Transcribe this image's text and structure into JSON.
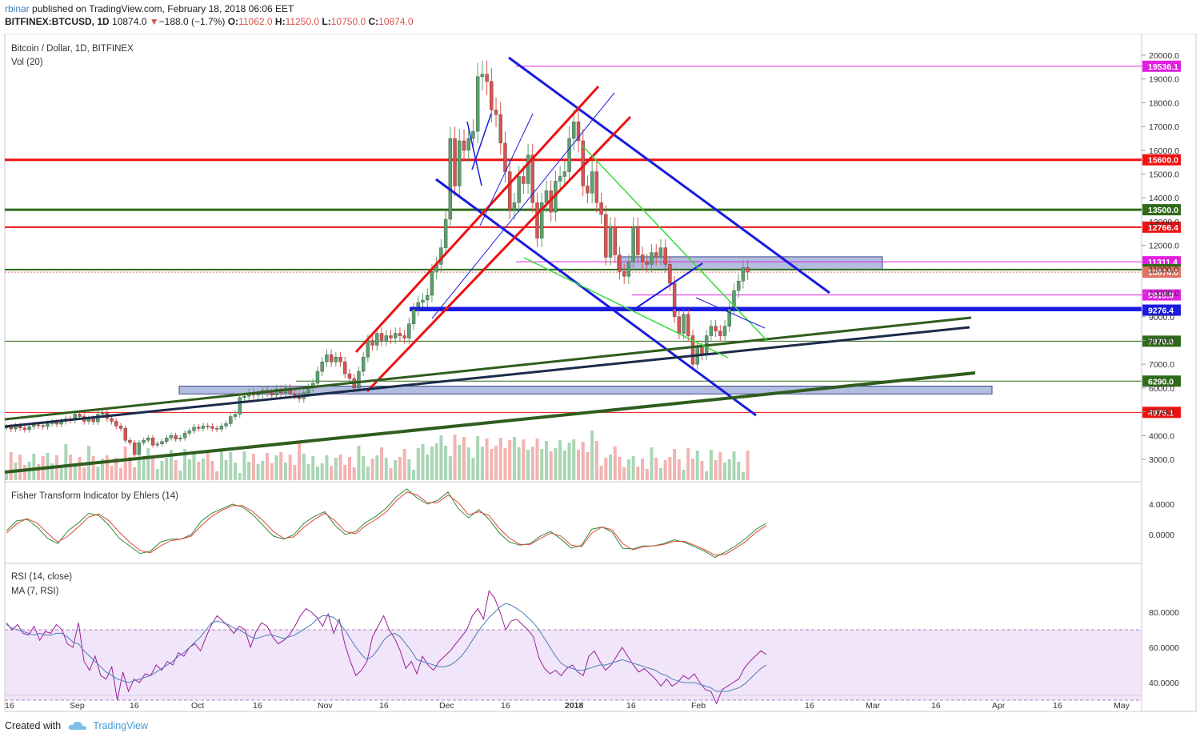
{
  "header": {
    "publisher": "rbinar",
    "published_text": "published on TradingView.com, February 18, 2018 06:06 EET",
    "symbol": "BITFINEX:BTCUSD, 1D",
    "last": "10874.0",
    "change": "−188.0 (−1.7%)",
    "o_label": "O:",
    "o": "11062.0",
    "h_label": "H:",
    "h": "11250.0",
    "l_label": "L:",
    "l": "10750.0",
    "c_label": "C:",
    "c": "10874.0"
  },
  "panes": {
    "main_title": "Bitcoin / Dollar, 1D, BITFINEX",
    "volume_title": "Vol (20)",
    "fisher_title": "Fisher Transform Indicator by Ehlers (14)",
    "rsi_title": "RSI (14, close)",
    "rsi_ma_title": "MA (7, RSI)"
  },
  "footer": {
    "created_with": "Created with",
    "brand": "TradingView"
  },
  "colors": {
    "up": "#5aa16d",
    "down": "#d9534f",
    "red_line": "#ee1111",
    "green_line": "#3a6b1c",
    "blue_line": "#1a1ae0",
    "navy_line": "#1b2b4a",
    "magenta": "#e020e0",
    "zone": "#7486c4"
  },
  "chart_data": [
    {
      "type": "candlestick",
      "title": "Bitcoin / Dollar, 1D, BITFINEX",
      "ylim": [
        2200,
        20800
      ],
      "y_ticks": [
        "3000.0",
        "4000.0",
        "5000.0",
        "6000.0",
        "7000.0",
        "8000.0",
        "9000.0",
        "10000.0",
        "11000.0",
        "12000.0",
        "13000.0",
        "14000.0",
        "15000.0",
        "16000.0",
        "17000.0",
        "18000.0",
        "19000.0",
        "20000.0"
      ],
      "x_ticks": [
        "16",
        "Sep",
        "16",
        "Oct",
        "16",
        "Nov",
        "16",
        "Dec",
        "16",
        "2018",
        "16",
        "Feb",
        "16",
        "Mar",
        "16",
        "Apr",
        "16",
        "May",
        "16"
      ],
      "closes": [
        4350,
        4280,
        4400,
        4320,
        4250,
        4380,
        4450,
        4420,
        4380,
        4500,
        4550,
        4480,
        4600,
        4700,
        4650,
        4900,
        4800,
        4600,
        4700,
        4580,
        4900,
        4950,
        4720,
        4600,
        4400,
        4300,
        3800,
        3700,
        3200,
        3700,
        3800,
        3900,
        3600,
        3650,
        3750,
        3900,
        4000,
        3850,
        3900,
        4100,
        4200,
        4350,
        4300,
        4400,
        4380,
        4300,
        4270,
        4400,
        4500,
        4800,
        4900,
        5600,
        5650,
        5800,
        5700,
        5750,
        5900,
        5800,
        5700,
        5950,
        5800,
        6000,
        5750,
        5700,
        5550,
        5800,
        6000,
        6200,
        6700,
        7100,
        7400,
        7100,
        7300,
        7100,
        6600,
        6400,
        6000,
        6700,
        7300,
        8000,
        7800,
        8300,
        8000,
        8200,
        8100,
        8300,
        8200,
        8100,
        8700,
        9300,
        9600,
        9700,
        9900,
        10900,
        11200,
        11900,
        13100,
        16500,
        14500,
        16400,
        16000,
        16500,
        16800,
        19100,
        19200,
        18900,
        17700,
        17500,
        16300,
        15100,
        13500,
        13800,
        14900,
        14600,
        15800,
        13800,
        12300,
        13800,
        14300,
        13400,
        14700,
        14900,
        15100,
        16500,
        17200,
        16400,
        14500,
        14200,
        15100,
        13800,
        13300,
        11500,
        12800,
        11600,
        10900,
        10700,
        11300,
        12800,
        11600,
        11300,
        11200,
        11700,
        11500,
        11900,
        11200,
        10400,
        9000,
        8300,
        9100,
        8200,
        7000,
        7700,
        7400,
        8200,
        8600,
        8400,
        8200,
        8600,
        9400,
        10100,
        10500,
        11062,
        10874
      ],
      "opens_follow_previous_close": true,
      "horizontal_levels": [
        {
          "value": 19536.1,
          "color": "#e020e0",
          "label": "19536.1"
        },
        {
          "value": 15600.0,
          "color": "#ee1111",
          "label": "15600.0"
        },
        {
          "value": 13500.0,
          "color": "#2f6a1a",
          "label": "13500.0"
        },
        {
          "value": 12766.4,
          "color": "#ee1111",
          "label": "12766.4"
        },
        {
          "value": 11311.4,
          "color": "#e020e0",
          "label": "11311.4"
        },
        {
          "value": 10982.1,
          "color": "#2f6a1a",
          "label": "10982.1"
        },
        {
          "value": 10874.0,
          "color": "#e07060",
          "label": "10874.0"
        },
        {
          "value": 9915.0,
          "color": "#e020e0",
          "label": "9915.0"
        },
        {
          "value": 9276.4,
          "color": "#1a1ae0",
          "label": "9276.4"
        },
        {
          "value": 7970.0,
          "color": "#2f6a1a",
          "label": "7970.0"
        },
        {
          "value": 6290.0,
          "color": "#2f6a1a",
          "label": "6290.0"
        },
        {
          "value": 4975.1,
          "color": "#ee1111",
          "label": "4975.1"
        }
      ],
      "zones": [
        {
          "y1": 10982,
          "y2": 11520
        },
        {
          "y1": 5750,
          "y2": 6080
        }
      ]
    },
    {
      "type": "line",
      "title": "Fisher Transform Indicator by Ehlers (14)",
      "y_ticks": [
        "4.0000",
        "0.0000"
      ],
      "series": [
        {
          "color": "#2e8b3a",
          "values": [
            0.5,
            1.8,
            2.0,
            1.0,
            -0.5,
            -1.2,
            0.5,
            1.5,
            2.8,
            2.5,
            1.2,
            -0.5,
            -1.5,
            -2.5,
            -2.2,
            -1.0,
            -0.6,
            -0.6,
            0.0,
            1.8,
            2.8,
            3.4,
            4.0,
            3.6,
            2.6,
            1.2,
            -0.2,
            -0.6,
            0.0,
            1.5,
            2.4,
            3.0,
            1.2,
            0.0,
            0.4,
            1.6,
            2.4,
            3.5,
            5.0,
            6.0,
            4.8,
            4.0,
            4.5,
            5.6,
            3.4,
            2.2,
            3.3,
            2.0,
            0.2,
            -1.0,
            -1.4,
            -1.2,
            -0.2,
            0.4,
            -0.6,
            -1.8,
            -1.4,
            0.7,
            1.0,
            0.3,
            -1.8,
            -1.9,
            -1.5,
            -1.5,
            -1.2,
            -0.7,
            -1.0,
            -1.6,
            -2.2,
            -3.0,
            -2.3,
            -1.5,
            -0.5,
            0.7,
            1.5
          ]
        },
        {
          "color": "#e0453a",
          "values": [
            0.2,
            1.4,
            2.1,
            1.5,
            0.2,
            -1.0,
            -0.2,
            1.0,
            2.3,
            2.7,
            1.8,
            0.3,
            -1.0,
            -2.1,
            -2.4,
            -1.5,
            -0.8,
            -0.6,
            -0.2,
            1.2,
            2.4,
            3.2,
            3.8,
            3.8,
            3.0,
            1.8,
            0.4,
            -0.5,
            -0.3,
            1.0,
            2.0,
            2.8,
            1.8,
            0.4,
            0.1,
            1.2,
            2.0,
            3.0,
            4.5,
            5.6,
            5.2,
            4.2,
            4.2,
            5.2,
            4.2,
            2.6,
            3.0,
            2.5,
            0.8,
            -0.5,
            -1.3,
            -1.3,
            -0.5,
            0.2,
            -0.2,
            -1.4,
            -1.6,
            0.2,
            1.0,
            0.6,
            -1.2,
            -2.0,
            -1.6,
            -1.5,
            -1.3,
            -0.9,
            -0.9,
            -1.4,
            -2.0,
            -2.7,
            -2.6,
            -1.8,
            -0.9,
            0.3,
            1.2
          ]
        }
      ]
    },
    {
      "type": "line",
      "title": "RSI (14, close)",
      "y_ticks": [
        "80.0000",
        "60.0000",
        "40.0000"
      ],
      "band": [
        30,
        70
      ],
      "series": [
        {
          "name": "RSI (14, close)",
          "color": "#9b1f9b",
          "values": [
            74,
            70,
            73,
            68,
            67,
            72,
            64,
            69,
            68,
            73,
            70,
            62,
            60,
            74,
            52,
            47,
            55,
            44,
            42,
            49,
            30,
            46,
            35,
            42,
            40,
            45,
            44,
            50,
            47,
            52,
            50,
            57,
            55,
            60,
            62,
            58,
            66,
            73,
            78,
            75,
            72,
            68,
            72,
            70,
            60,
            69,
            74,
            72,
            66,
            62,
            64,
            67,
            72,
            78,
            82,
            80,
            77,
            72,
            79,
            68,
            76,
            62,
            52,
            44,
            47,
            52,
            66,
            72,
            78,
            70,
            65,
            58,
            48,
            52,
            45,
            55,
            50,
            47,
            52,
            55,
            58,
            62,
            66,
            70,
            78,
            82,
            76,
            92,
            88,
            80,
            70,
            75,
            76,
            73,
            70,
            66,
            54,
            48,
            45,
            47,
            44,
            48,
            50,
            46,
            44,
            55,
            58,
            52,
            47,
            50,
            55,
            60,
            55,
            50,
            46,
            48,
            45,
            42,
            38,
            42,
            38,
            40,
            44,
            42,
            45,
            40,
            36,
            35,
            28,
            36,
            38,
            40,
            42,
            48,
            52,
            55,
            58,
            56
          ]
        },
        {
          "name": "MA (7, RSI)",
          "color": "#4a7fb5",
          "values": [
            73,
            71,
            70,
            69,
            68,
            67,
            68,
            67,
            67,
            68,
            68,
            66,
            63,
            62,
            58,
            55,
            52,
            49,
            46,
            44,
            42,
            41,
            40,
            41,
            42,
            43,
            44,
            46,
            48,
            50,
            52,
            55,
            57,
            60,
            63,
            66,
            70,
            74,
            75,
            74,
            73,
            71,
            70,
            68,
            66,
            65,
            66,
            67,
            67,
            66,
            65,
            66,
            67,
            69,
            71,
            73,
            76,
            78,
            78,
            77,
            74,
            70,
            65,
            60,
            56,
            53,
            55,
            59,
            64,
            67,
            68,
            66,
            62,
            58,
            53,
            52,
            51,
            50,
            49,
            49,
            50,
            52,
            55,
            59,
            64,
            69,
            73,
            77,
            80,
            83,
            85,
            84,
            82,
            80,
            77,
            74,
            70,
            65,
            60,
            55,
            51,
            49,
            48,
            47,
            47,
            48,
            49,
            50,
            50,
            51,
            52,
            53,
            52,
            51,
            50,
            49,
            48,
            47,
            45,
            44,
            42,
            41,
            40,
            40,
            40,
            39,
            38,
            37,
            35,
            35,
            35,
            36,
            37,
            39,
            42,
            45,
            48,
            50
          ]
        }
      ]
    }
  ]
}
